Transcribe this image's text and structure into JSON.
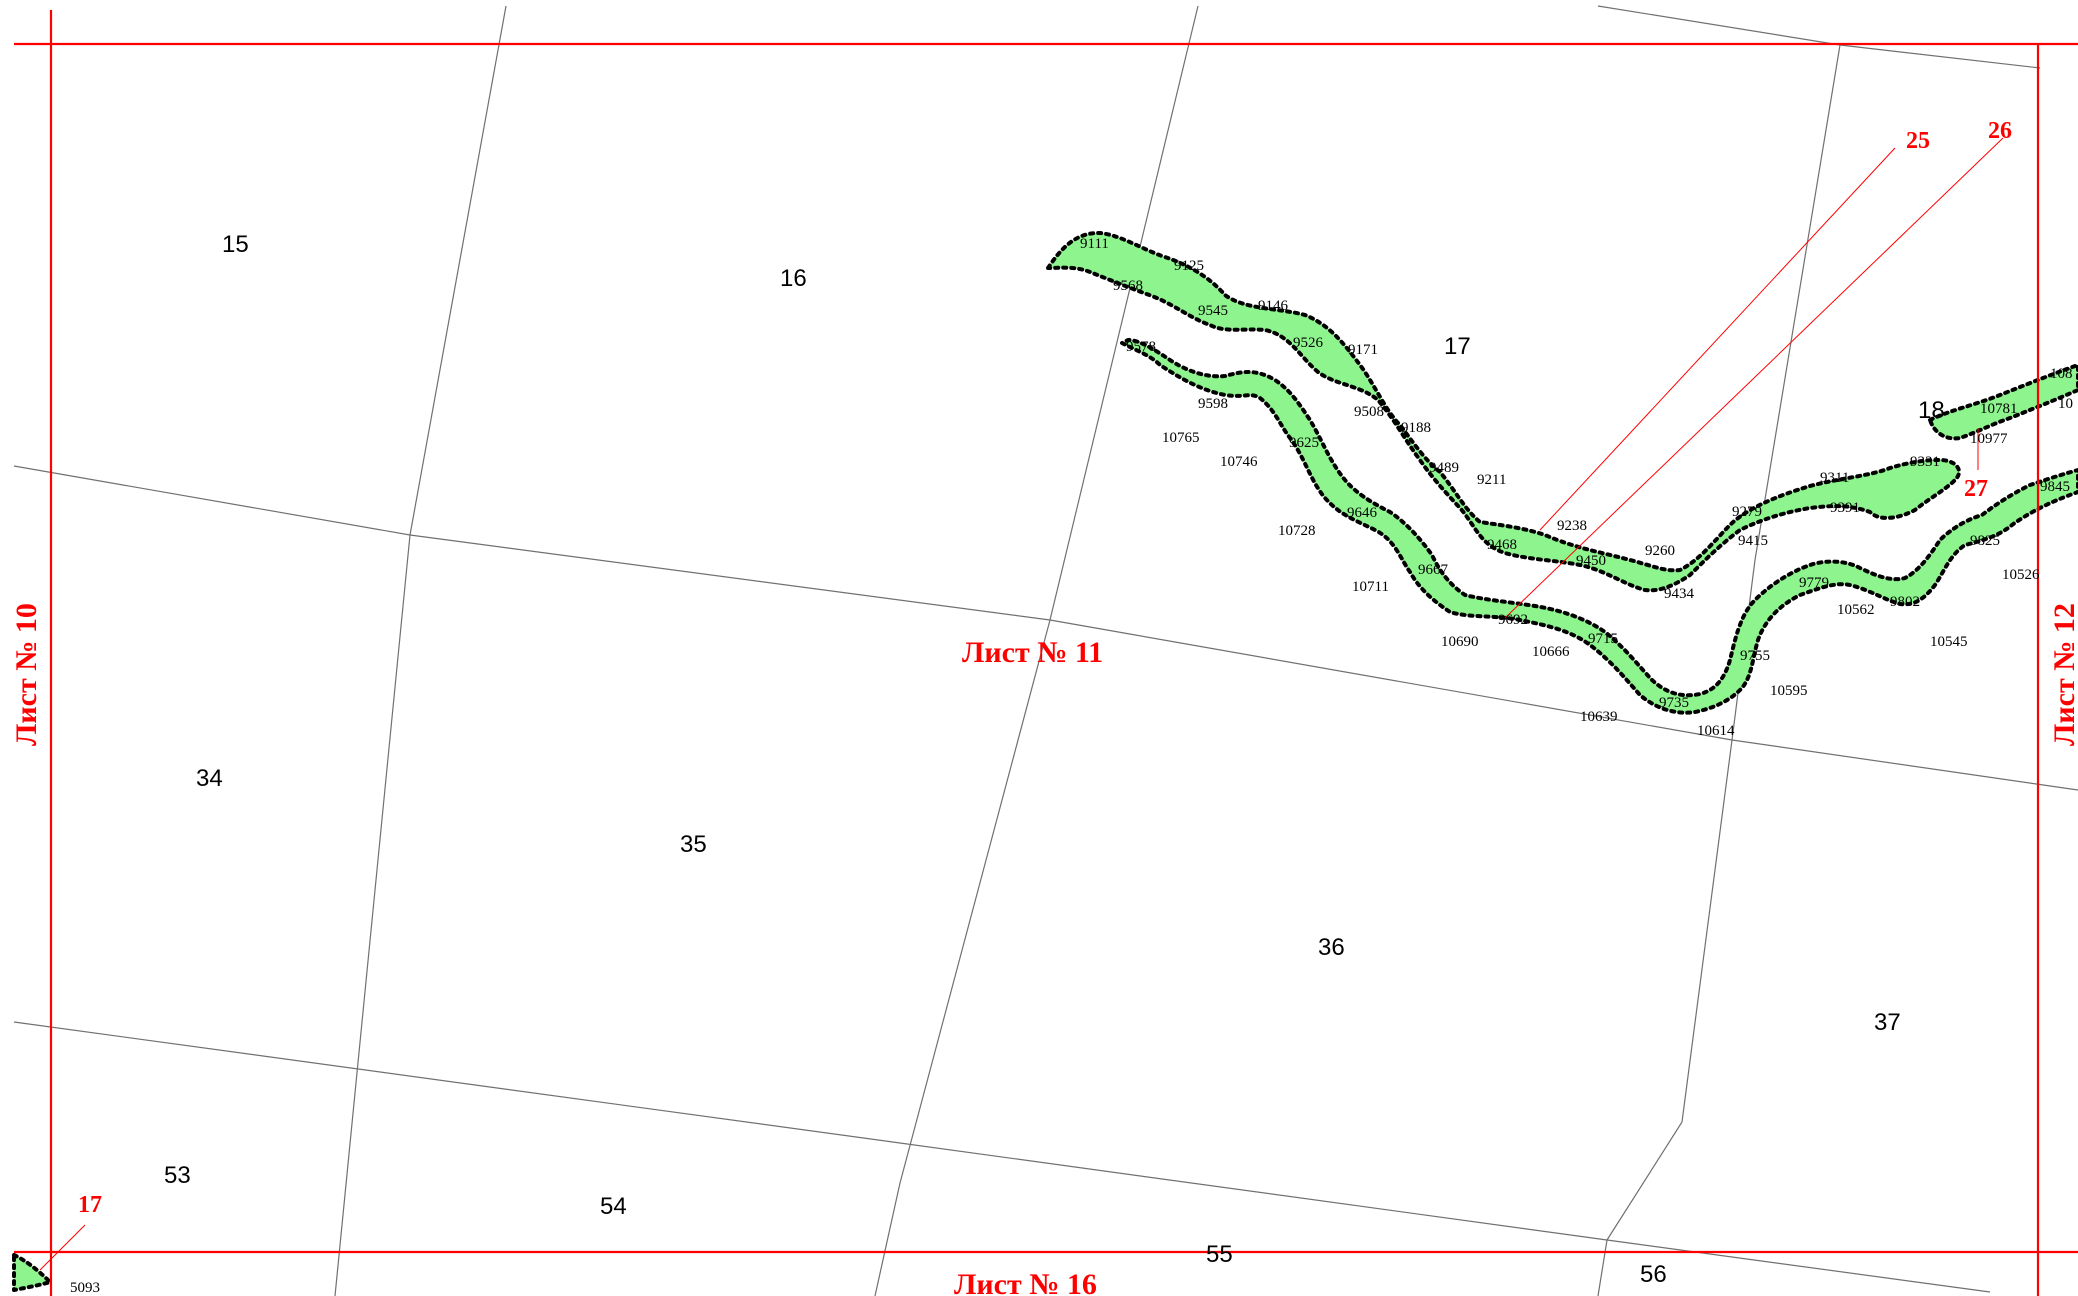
{
  "map": {
    "sheets": {
      "current": "Лист № 11",
      "left": "Лист № 10",
      "right": "Лист № 12",
      "bottom": "Лист № 16"
    },
    "parcels": [
      "15",
      "16",
      "17",
      "18",
      "34",
      "35",
      "36",
      "37",
      "53",
      "54",
      "55",
      "56"
    ],
    "callouts": [
      "25",
      "26",
      "27",
      "17"
    ],
    "points": {
      "p9111": "9111",
      "p9125": "9125",
      "p9568": "9568",
      "p9545": "9545",
      "p9146": "9146",
      "p9526": "9526",
      "p9171": "9171",
      "p9508": "9508",
      "p9188": "9188",
      "p9489": "9489",
      "p9211": "9211",
      "p9468": "9468",
      "p9238": "9238",
      "p9450": "9450",
      "p9260": "9260",
      "p9434": "9434",
      "p9415": "9415",
      "p9279": "9279",
      "p9311": "9311",
      "p9391": "9391",
      "p9331": "9331",
      "p9578": "9578",
      "p9598": "9598",
      "p10765": "10765",
      "p10746": "10746",
      "p9625": "9625",
      "p9646": "9646",
      "p10728": "10728",
      "p9667": "9667",
      "p10711": "10711",
      "p9692": "9692",
      "p10690": "10690",
      "p9715": "9715",
      "p10666": "10666",
      "p9735": "9735",
      "p10639": "10639",
      "p10614": "10614",
      "p9755": "9755",
      "p10595": "10595",
      "p9779": "9779",
      "p10562": "10562",
      "p9802": "9802",
      "p10545": "10545",
      "p9825": "9825",
      "p10526": "10526",
      "p10781": "10781",
      "p10977": "10977",
      "p9845": "9845",
      "p108a": "108",
      "p10b": "10",
      "p5093": "5093"
    },
    "colors": {
      "frame": "#ff0000",
      "strip": "#8ef58e",
      "grid": "#707070"
    }
  }
}
